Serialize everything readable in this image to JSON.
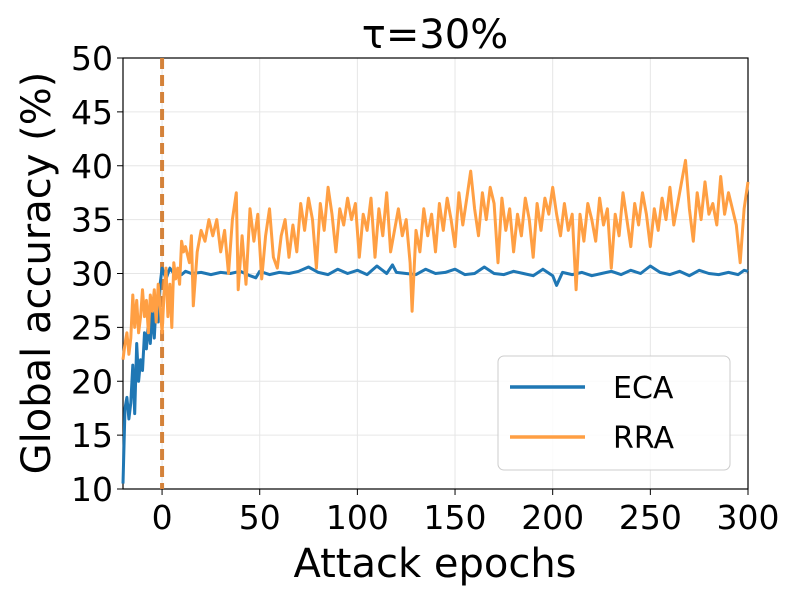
{
  "chart_data": {
    "type": "line",
    "title": "τ=30%",
    "xlabel": "Attack epochs",
    "ylabel": "Global accuracy (%)",
    "xlim": [
      -20,
      300
    ],
    "ylim": [
      10,
      50
    ],
    "xticks": [
      0,
      50,
      100,
      150,
      200,
      250,
      300
    ],
    "yticks": [
      10,
      15,
      20,
      25,
      30,
      35,
      40,
      45,
      50
    ],
    "grid": true,
    "legend": "lower-right",
    "attack_start_x": 0,
    "attack_line_color": "#d4823a",
    "series": [
      {
        "name": "ECA",
        "color": "#1f77b4",
        "points": [
          [
            -20,
            10.5
          ],
          [
            -19,
            17.5
          ],
          [
            -18,
            18.5
          ],
          [
            -17,
            16.5
          ],
          [
            -16,
            18.0
          ],
          [
            -15,
            21.5
          ],
          [
            -14,
            17.0
          ],
          [
            -13,
            23.5
          ],
          [
            -12,
            20.0
          ],
          [
            -11,
            22.0
          ],
          [
            -10,
            21.0
          ],
          [
            -9,
            24.5
          ],
          [
            -8,
            23.0
          ],
          [
            -7,
            25.5
          ],
          [
            -6,
            23.5
          ],
          [
            -5,
            26.5
          ],
          [
            -4,
            24.0
          ],
          [
            -3,
            27.5
          ],
          [
            -2,
            25.5
          ],
          [
            -1,
            29.0
          ],
          [
            0,
            30.5
          ],
          [
            2,
            29.5
          ],
          [
            4,
            30.5
          ],
          [
            6,
            30.0
          ],
          [
            8,
            30.2
          ],
          [
            10,
            29.9
          ],
          [
            12,
            30.2
          ],
          [
            15,
            30.0
          ],
          [
            20,
            30.1
          ],
          [
            25,
            29.9
          ],
          [
            30,
            30.1
          ],
          [
            35,
            30.0
          ],
          [
            40,
            30.2
          ],
          [
            45,
            29.8
          ],
          [
            48,
            29.6
          ],
          [
            50,
            30.2
          ],
          [
            55,
            29.9
          ],
          [
            60,
            30.1
          ],
          [
            65,
            30.0
          ],
          [
            70,
            30.2
          ],
          [
            75,
            30.6
          ],
          [
            80,
            30.1
          ],
          [
            85,
            29.9
          ],
          [
            90,
            30.4
          ],
          [
            95,
            30.0
          ],
          [
            100,
            30.3
          ],
          [
            105,
            29.9
          ],
          [
            110,
            30.7
          ],
          [
            115,
            30.0
          ],
          [
            118,
            30.8
          ],
          [
            120,
            30.1
          ],
          [
            125,
            30.0
          ],
          [
            130,
            29.9
          ],
          [
            135,
            30.4
          ],
          [
            140,
            30.0
          ],
          [
            145,
            30.1
          ],
          [
            150,
            30.4
          ],
          [
            155,
            29.9
          ],
          [
            160,
            30.0
          ],
          [
            165,
            30.6
          ],
          [
            170,
            30.0
          ],
          [
            175,
            29.9
          ],
          [
            180,
            30.2
          ],
          [
            185,
            30.0
          ],
          [
            190,
            29.8
          ],
          [
            195,
            30.4
          ],
          [
            200,
            29.8
          ],
          [
            202,
            28.9
          ],
          [
            205,
            30.1
          ],
          [
            210,
            29.9
          ],
          [
            215,
            30.1
          ],
          [
            220,
            29.8
          ],
          [
            225,
            30.0
          ],
          [
            230,
            30.2
          ],
          [
            235,
            29.9
          ],
          [
            240,
            30.3
          ],
          [
            245,
            30.0
          ],
          [
            250,
            30.7
          ],
          [
            255,
            30.1
          ],
          [
            260,
            29.9
          ],
          [
            265,
            30.2
          ],
          [
            270,
            29.8
          ],
          [
            275,
            30.3
          ],
          [
            280,
            30.0
          ],
          [
            285,
            29.9
          ],
          [
            290,
            30.1
          ],
          [
            295,
            29.9
          ],
          [
            298,
            30.3
          ],
          [
            300,
            30.2
          ]
        ]
      },
      {
        "name": "RRA",
        "color": "#ff9f43",
        "points": [
          [
            -20,
            22.0
          ],
          [
            -19,
            23.5
          ],
          [
            -18,
            24.5
          ],
          [
            -17,
            22.5
          ],
          [
            -16,
            24.0
          ],
          [
            -15,
            28.0
          ],
          [
            -14,
            25.0
          ],
          [
            -13,
            27.5
          ],
          [
            -12,
            24.5
          ],
          [
            -11,
            26.0
          ],
          [
            -10,
            28.5
          ],
          [
            -9,
            26.0
          ],
          [
            -8,
            27.5
          ],
          [
            -7,
            24.5
          ],
          [
            -6,
            28.0
          ],
          [
            -5,
            26.5
          ],
          [
            -4,
            28.5
          ],
          [
            -3,
            25.5
          ],
          [
            -2,
            29.0
          ],
          [
            -1,
            27.0
          ],
          [
            0,
            24.5
          ],
          [
            1,
            28.0
          ],
          [
            2,
            30.5
          ],
          [
            3,
            26.0
          ],
          [
            4,
            29.0
          ],
          [
            5,
            25.0
          ],
          [
            6,
            31.0
          ],
          [
            7,
            29.5
          ],
          [
            8,
            30.5
          ],
          [
            9,
            29.0
          ],
          [
            10,
            33.0
          ],
          [
            11,
            32.0
          ],
          [
            12,
            32.5
          ],
          [
            14,
            31.0
          ],
          [
            15,
            33.5
          ],
          [
            16,
            27.0
          ],
          [
            18,
            32.0
          ],
          [
            20,
            34.0
          ],
          [
            22,
            33.0
          ],
          [
            24,
            35.0
          ],
          [
            26,
            33.5
          ],
          [
            28,
            35.0
          ],
          [
            30,
            32.0
          ],
          [
            32,
            34.0
          ],
          [
            34,
            30.0
          ],
          [
            36,
            35.0
          ],
          [
            38,
            37.5
          ],
          [
            39,
            28.5
          ],
          [
            41,
            33.5
          ],
          [
            43,
            29.0
          ],
          [
            45,
            36.0
          ],
          [
            47,
            33.0
          ],
          [
            49,
            35.5
          ],
          [
            51,
            29.5
          ],
          [
            53,
            33.5
          ],
          [
            55,
            36.0
          ],
          [
            57,
            31.5
          ],
          [
            59,
            30.5
          ],
          [
            61,
            33.5
          ],
          [
            63,
            35.0
          ],
          [
            65,
            31.5
          ],
          [
            67,
            34.5
          ],
          [
            69,
            32.0
          ],
          [
            71,
            36.5
          ],
          [
            73,
            34.0
          ],
          [
            75,
            37.0
          ],
          [
            77,
            35.0
          ],
          [
            79,
            30.5
          ],
          [
            81,
            36.5
          ],
          [
            83,
            34.0
          ],
          [
            85,
            38.0
          ],
          [
            87,
            35.5
          ],
          [
            89,
            32.0
          ],
          [
            91,
            36.0
          ],
          [
            93,
            34.5
          ],
          [
            95,
            37.0
          ],
          [
            97,
            35.0
          ],
          [
            99,
            36.5
          ],
          [
            101,
            31.5
          ],
          [
            103,
            35.5
          ],
          [
            105,
            34.0
          ],
          [
            107,
            37.0
          ],
          [
            109,
            31.5
          ],
          [
            111,
            36.0
          ],
          [
            113,
            33.5
          ],
          [
            115,
            37.5
          ],
          [
            117,
            32.0
          ],
          [
            119,
            34.0
          ],
          [
            121,
            36.0
          ],
          [
            123,
            33.5
          ],
          [
            125,
            35.0
          ],
          [
            127,
            31.0
          ],
          [
            128,
            26.5
          ],
          [
            130,
            34.0
          ],
          [
            132,
            32.0
          ],
          [
            134,
            36.0
          ],
          [
            136,
            33.5
          ],
          [
            138,
            35.5
          ],
          [
            140,
            32.0
          ],
          [
            142,
            36.5
          ],
          [
            144,
            34.0
          ],
          [
            146,
            37.0
          ],
          [
            148,
            35.0
          ],
          [
            150,
            32.5
          ],
          [
            152,
            37.5
          ],
          [
            154,
            34.5
          ],
          [
            156,
            37.0
          ],
          [
            158,
            39.5
          ],
          [
            160,
            36.0
          ],
          [
            162,
            33.5
          ],
          [
            164,
            37.5
          ],
          [
            166,
            35.0
          ],
          [
            168,
            38.0
          ],
          [
            170,
            36.5
          ],
          [
            172,
            31.0
          ],
          [
            174,
            37.0
          ],
          [
            176,
            34.0
          ],
          [
            178,
            36.0
          ],
          [
            180,
            32.0
          ],
          [
            182,
            35.5
          ],
          [
            184,
            33.5
          ],
          [
            186,
            37.0
          ],
          [
            188,
            35.0
          ],
          [
            190,
            31.5
          ],
          [
            192,
            36.5
          ],
          [
            194,
            34.0
          ],
          [
            196,
            37.0
          ],
          [
            198,
            35.5
          ],
          [
            200,
            38.0
          ],
          [
            202,
            35.5
          ],
          [
            204,
            33.5
          ],
          [
            206,
            36.5
          ],
          [
            208,
            34.0
          ],
          [
            210,
            35.5
          ],
          [
            212,
            28.5
          ],
          [
            214,
            35.5
          ],
          [
            216,
            33.0
          ],
          [
            218,
            36.5
          ],
          [
            220,
            35.0
          ],
          [
            222,
            33.0
          ],
          [
            224,
            37.0
          ],
          [
            226,
            34.5
          ],
          [
            228,
            36.0
          ],
          [
            230,
            30.5
          ],
          [
            232,
            35.5
          ],
          [
            234,
            33.5
          ],
          [
            236,
            37.5
          ],
          [
            238,
            35.0
          ],
          [
            240,
            32.5
          ],
          [
            242,
            36.5
          ],
          [
            244,
            34.5
          ],
          [
            246,
            37.5
          ],
          [
            248,
            35.5
          ],
          [
            250,
            32.5
          ],
          [
            252,
            36.0
          ],
          [
            254,
            34.0
          ],
          [
            256,
            37.0
          ],
          [
            258,
            35.0
          ],
          [
            260,
            38.0
          ],
          [
            262,
            34.5
          ],
          [
            264,
            36.5
          ],
          [
            266,
            38.5
          ],
          [
            268,
            40.5
          ],
          [
            270,
            36.0
          ],
          [
            272,
            33.0
          ],
          [
            274,
            37.5
          ],
          [
            276,
            35.0
          ],
          [
            278,
            38.5
          ],
          [
            280,
            35.5
          ],
          [
            282,
            36.5
          ],
          [
            284,
            34.5
          ],
          [
            286,
            39.0
          ],
          [
            288,
            35.5
          ],
          [
            290,
            37.5
          ],
          [
            292,
            36.0
          ],
          [
            294,
            34.5
          ],
          [
            296,
            31.0
          ],
          [
            298,
            36.0
          ],
          [
            300,
            38.5
          ]
        ]
      }
    ]
  }
}
